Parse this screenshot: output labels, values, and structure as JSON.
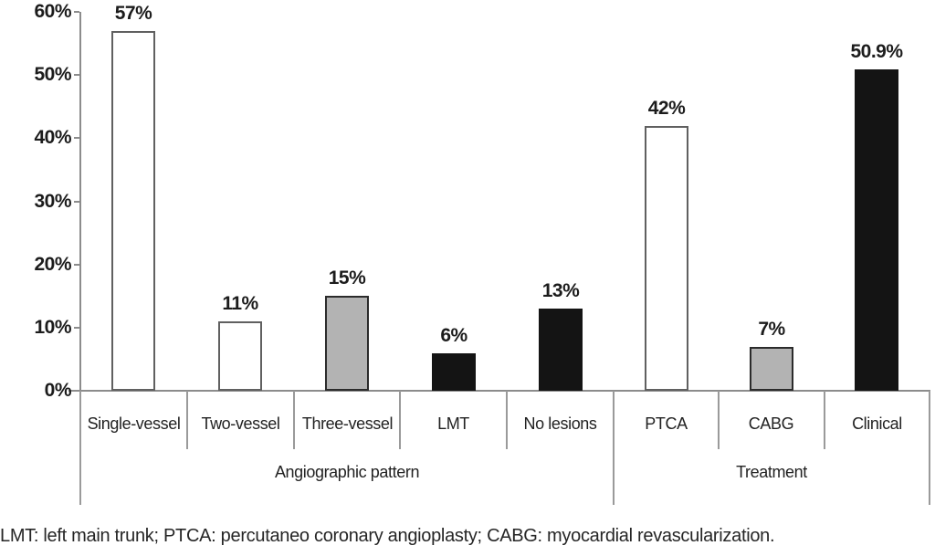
{
  "figure": {
    "footnote": "LMT: left main trunk; PTCA: percutaneo coronary angioplasty; CABG: myocardial revascularization."
  },
  "colors": {
    "axis": "#8c8c8c",
    "divider": "#9a9a9a",
    "text": "#1c1c1c",
    "bar_styles": {
      "white": {
        "fill": "#ffffff",
        "border": "#606060"
      },
      "gray": {
        "fill": "#b3b3b3",
        "border": "#2b2b2b"
      },
      "black": {
        "fill": "#141414",
        "border": "#141414"
      }
    }
  },
  "chart_data": {
    "type": "bar",
    "title": "",
    "xlabel": "",
    "ylabel": "",
    "ylim": [
      0,
      60
    ],
    "grid": false,
    "legend": false,
    "y_ticks": [
      {
        "value": 60,
        "label": "60%"
      },
      {
        "value": 50,
        "label": "50%"
      },
      {
        "value": 40,
        "label": "40%"
      },
      {
        "value": 30,
        "label": "30%"
      },
      {
        "value": 20,
        "label": "20%"
      },
      {
        "value": 10,
        "label": "10%"
      },
      {
        "value": 0,
        "label": "0%"
      }
    ],
    "groups": [
      {
        "label": "Angiographic pattern",
        "bars": [
          {
            "category": "Single-vessel",
            "value": 57,
            "value_label": "57%",
            "style": "white"
          },
          {
            "category": "Two-vessel",
            "value": 11,
            "value_label": "11%",
            "style": "white"
          },
          {
            "category": "Three-vessel",
            "value": 15,
            "value_label": "15%",
            "style": "gray"
          },
          {
            "category": "LMT",
            "value": 6,
            "value_label": "6%",
            "style": "black"
          },
          {
            "category": "No lesions",
            "value": 13,
            "value_label": "13%",
            "style": "black"
          }
        ]
      },
      {
        "label": "Treatment",
        "bars": [
          {
            "category": "PTCA",
            "value": 42,
            "value_label": "42%",
            "style": "white"
          },
          {
            "category": "CABG",
            "value": 7,
            "value_label": "7%",
            "style": "gray"
          },
          {
            "category": "Clinical",
            "value": 50.9,
            "value_label": "50.9%",
            "style": "black"
          }
        ]
      }
    ]
  }
}
